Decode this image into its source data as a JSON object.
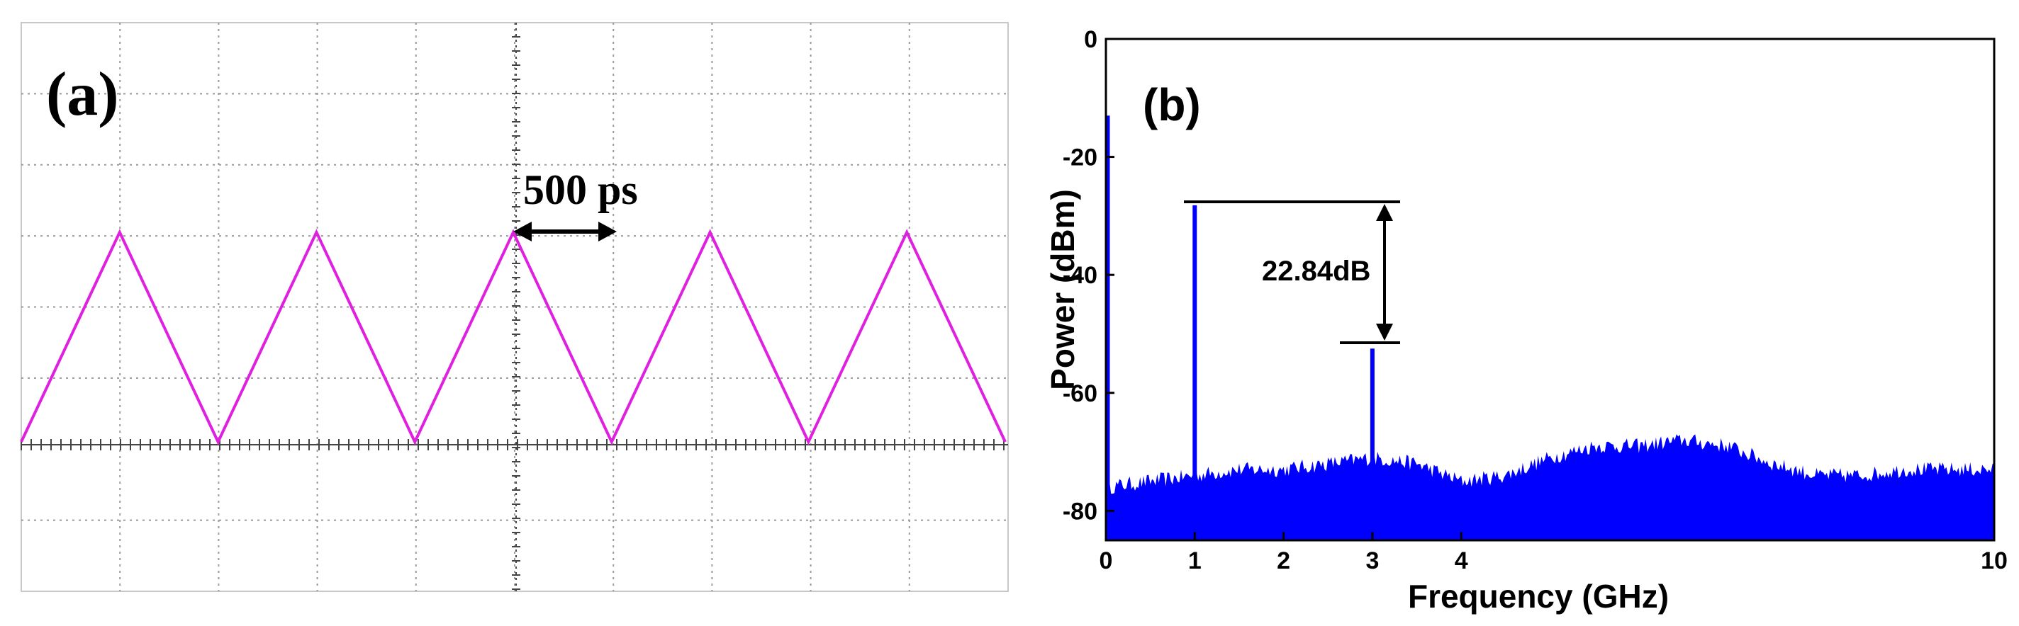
{
  "chart_data": [
    {
      "panel": "(a)",
      "type": "line",
      "annotation": "500 ps",
      "series": [
        {
          "values": [
            0.0,
            1.0,
            0.0,
            1.0,
            0.0,
            1.0,
            0.0,
            1.0,
            0.0,
            1.0,
            0.0
          ]
        }
      ],
      "colors": {
        "trace": "#e020e0",
        "grid": "#9a9a9a"
      },
      "grid": true
    },
    {
      "panel": "(b)",
      "type": "line",
      "xlabel": "Frequency (GHz)",
      "ylabel": "Power (dBm)",
      "xlim": [
        0,
        10
      ],
      "ylim": [
        -85,
        0
      ],
      "xticks": [
        0,
        1,
        2,
        3,
        4,
        10
      ],
      "yticks": [
        0,
        -20,
        -40,
        -60,
        -80
      ],
      "annotation": "22.84dB",
      "peaks": [
        {
          "x": 0.02,
          "y": -13
        },
        {
          "x": 1.0,
          "y": -28.2
        },
        {
          "x": 3.0,
          "y": -52.5
        }
      ],
      "noise_floor": {
        "x": [
          0,
          0.5,
          1,
          1.5,
          2,
          2.5,
          3,
          3.5,
          4,
          4.5,
          5,
          5.5,
          6,
          6.5,
          7,
          7.5,
          8,
          8.5,
          9,
          9.5,
          10
        ],
        "y": [
          -76,
          -75,
          -74,
          -73,
          -73,
          -72,
          -71,
          -72,
          -75,
          -74,
          -71,
          -69,
          -69,
          -68,
          -69,
          -72,
          -74,
          -74,
          -73,
          -73,
          -73
        ]
      },
      "colors": {
        "spectrum": "#0000ff",
        "annotation": "#000000"
      },
      "grid": false
    }
  ]
}
